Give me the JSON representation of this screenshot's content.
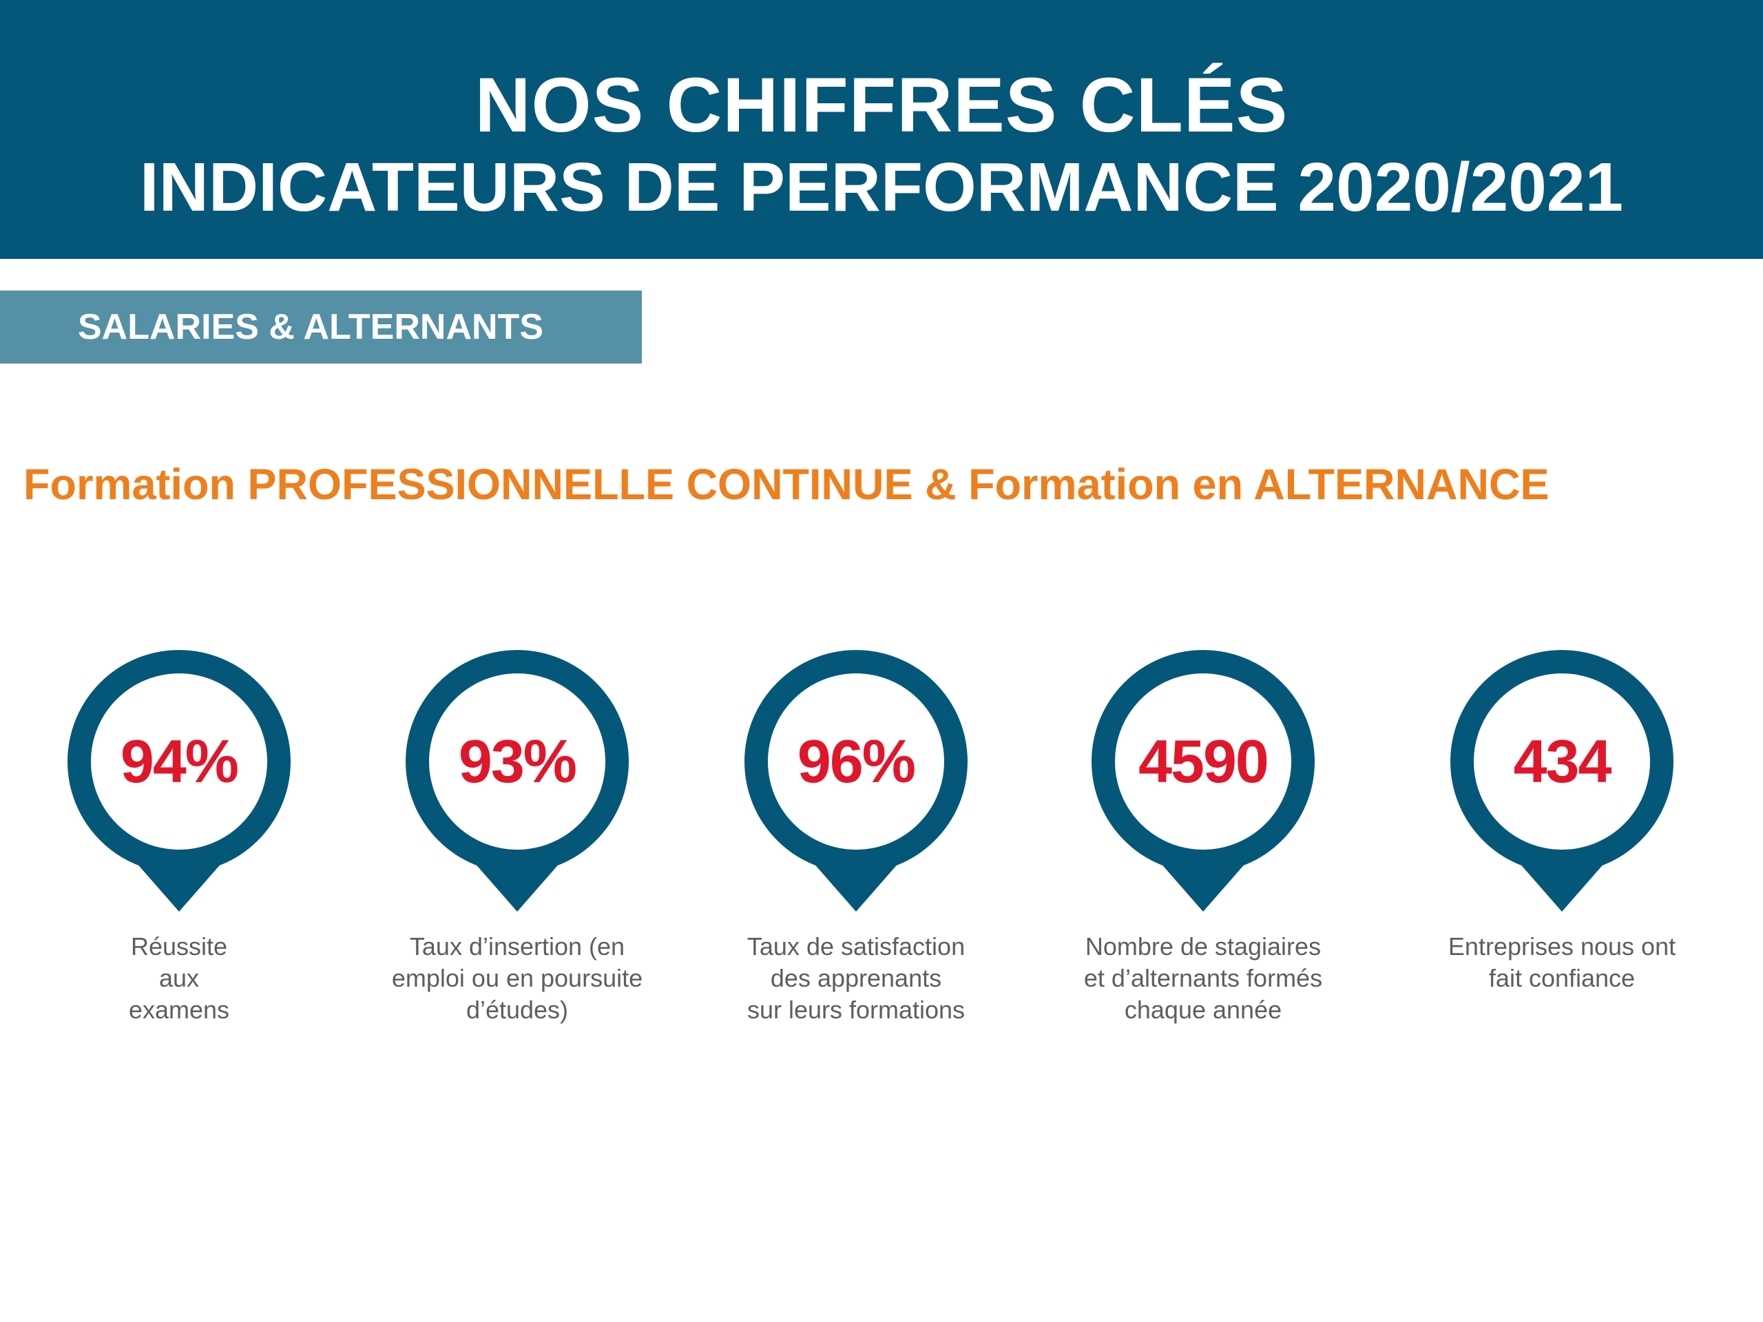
{
  "header": {
    "title": "NOS CHIFFRES CLÉS",
    "subtitle": "INDICATEURS DE PERFORMANCE 2020/2021"
  },
  "section_tag": "SALARIES & ALTERNANTS",
  "heading": "Formation PROFESSIONNELLE CONTINUE & Formation en ALTERNANCE",
  "colors": {
    "banner": "#045778",
    "tag": "#5590a7",
    "heading": "#ee7f1d",
    "value": "#e0162b",
    "pin": "#045778"
  },
  "kpis": [
    {
      "value": "94%",
      "label": "Réussite\naux\nexamens",
      "icon": "map-pin-icon"
    },
    {
      "value": "93%",
      "label": "Taux d’insertion (en\nemploi ou en poursuite\nd’études)",
      "icon": "map-pin-icon"
    },
    {
      "value": "96%",
      "label": "Taux de satisfaction\ndes apprenants\nsur leurs formations",
      "icon": "map-pin-icon"
    },
    {
      "value": "4590",
      "label": "Nombre de stagiaires\net d’alternants formés\nchaque année",
      "icon": "map-pin-icon"
    },
    {
      "value": "434",
      "label": "Entreprises nous ont\nfait confiance",
      "icon": "map-pin-icon"
    }
  ]
}
